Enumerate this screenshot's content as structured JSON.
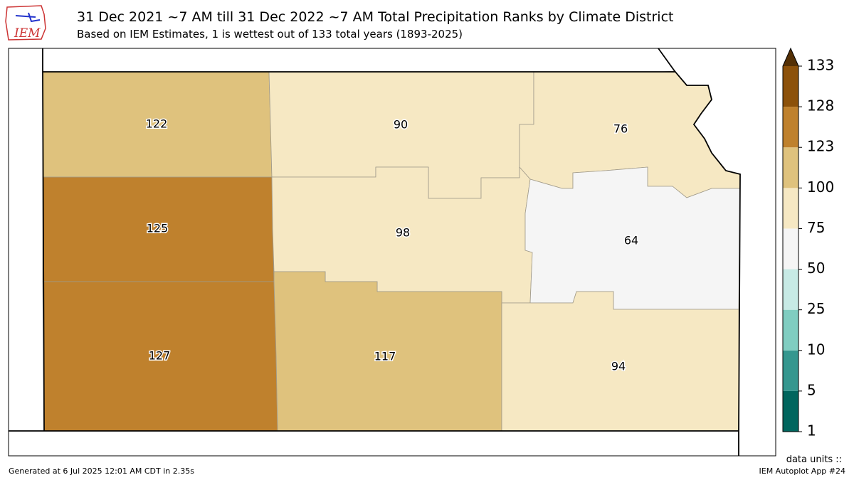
{
  "header": {
    "title": "31 Dec 2021 ~7 AM till 31 Dec 2022 ~7 AM Total Precipitation Ranks by Climate District",
    "subtitle": "Based on IEM Estimates, 1 is wettest out of 133 total years (1893-2025)"
  },
  "logo": "IEM",
  "districts": [
    {
      "rank": 122
    },
    {
      "rank": 90
    },
    {
      "rank": 76
    },
    {
      "rank": 125
    },
    {
      "rank": 98
    },
    {
      "rank": 64
    },
    {
      "rank": 127
    },
    {
      "rank": 117
    },
    {
      "rank": 94
    }
  ],
  "colorbar": {
    "ticks": [
      1,
      5,
      10,
      25,
      50,
      75,
      100,
      123,
      128,
      133
    ],
    "colors": [
      "#01665e",
      "#35978f",
      "#80cdc1",
      "#c7eae5",
      "#f5f5f5",
      "#f6e8c3",
      "#dfc27d",
      "#bf812d",
      "#8c510a"
    ],
    "extend_color": "#543005",
    "units_label": "data units ::"
  },
  "footer": {
    "left": "Generated at 6 Jul 2025 12:01 AM CDT in 2.35s",
    "right": "IEM Autoplot App #24"
  }
}
